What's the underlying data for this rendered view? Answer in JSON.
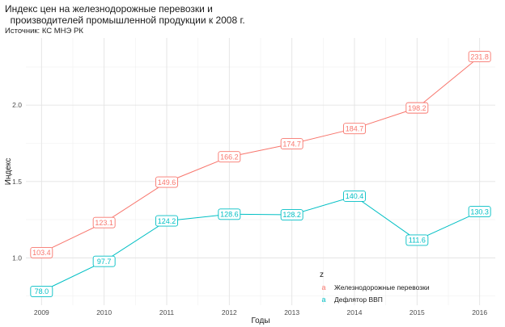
{
  "chart_data": {
    "type": "line",
    "title_line1": "Индекс цен на железнодорожные перевозки и",
    "title_line2": "  производителей промышленной продукции к 2008 г.",
    "subtitle": "Источник: КС МНЭ РК",
    "xlabel": "Годы",
    "ylabel": "Индекс",
    "x": [
      2009,
      2010,
      2011,
      2012,
      2013,
      2014,
      2015,
      2016
    ],
    "ylim": [
      0.69,
      2.44
    ],
    "yticks": [
      1.0,
      1.5,
      2.0
    ],
    "ytick_labels": [
      "1.0",
      "1.5",
      "2.0"
    ],
    "grid": true,
    "legend_title": "z",
    "legend_position": "bottom-right",
    "series": [
      {
        "name": "Железнодорожные перевозки",
        "color": "#F8766D",
        "values": [
          1.034,
          1.231,
          1.496,
          1.662,
          1.747,
          1.847,
          1.982,
          2.318
        ],
        "labels": [
          "103.4",
          "123.1",
          "149.6",
          "166.2",
          "174.7",
          "184.7",
          "198.2",
          "231.8"
        ]
      },
      {
        "name": "Дефлятор ВВП",
        "color": "#00BFC4",
        "values": [
          0.78,
          0.977,
          1.242,
          1.286,
          1.282,
          1.404,
          1.116,
          1.303
        ],
        "labels": [
          "78.0",
          "97.7",
          "124.2",
          "128.6",
          "128.2",
          "140.4",
          "111.6",
          "130.3"
        ]
      }
    ]
  }
}
